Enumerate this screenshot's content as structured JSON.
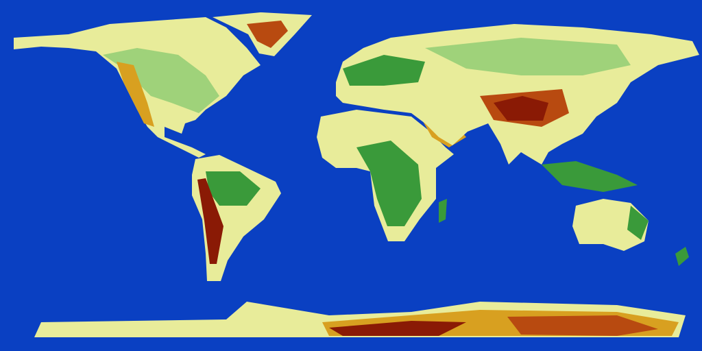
{
  "map": {
    "colors": {
      "ocean": "#0a40c2",
      "lowland": "#3a9a3a",
      "plain": "#9fd27a",
      "upland": "#e8ec9a",
      "highland": "#d8a020",
      "mountain": "#b84a10",
      "peak": "#8a1a05"
    }
  }
}
